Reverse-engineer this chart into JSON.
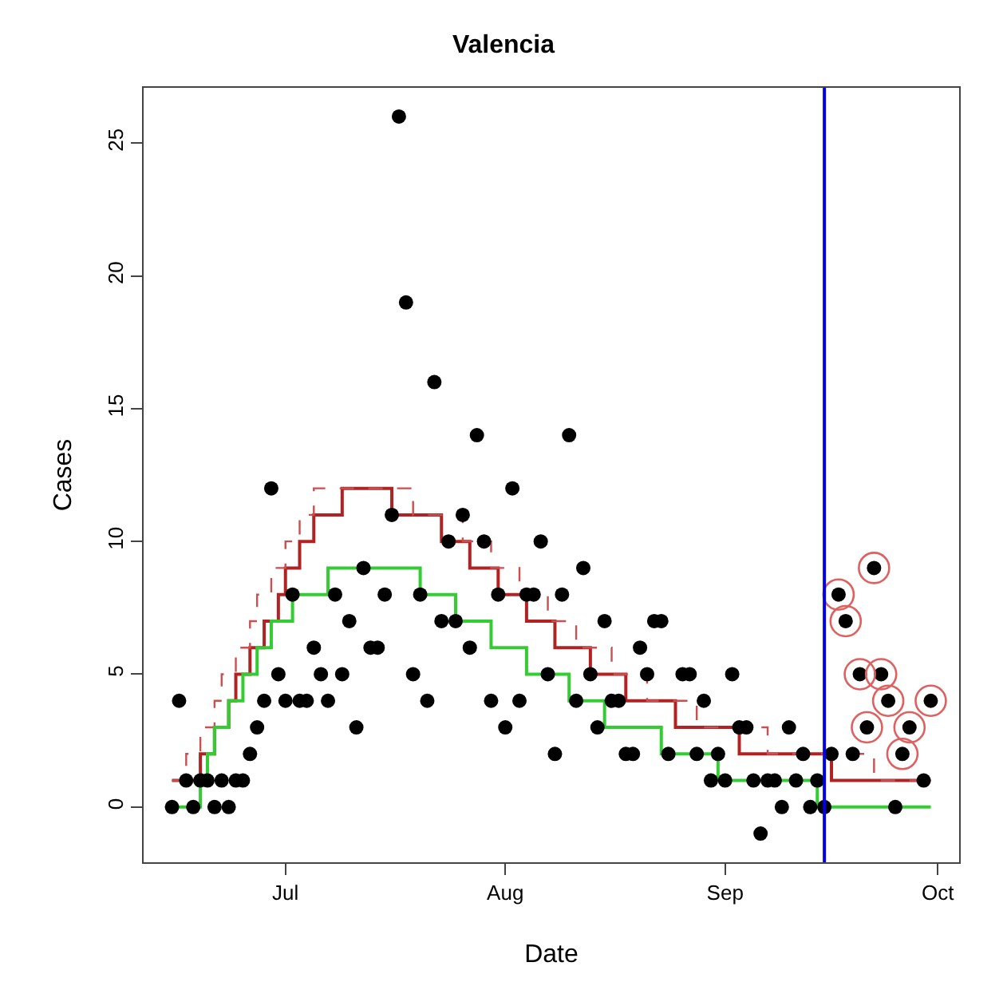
{
  "chart_data": {
    "type": "scatter",
    "title": "Valencia",
    "xlabel": "Date",
    "ylabel": "Cases",
    "xlim": [
      "--06-11",
      "--10-04"
    ],
    "ylim": [
      -2.08,
      27.08
    ],
    "xticks": [
      {
        "value": "--07-01",
        "label": "Jul"
      },
      {
        "value": "--08-01",
        "label": "Aug"
      },
      {
        "value": "--09-01",
        "label": "Sep"
      },
      {
        "value": "--10-01",
        "label": "Oct"
      }
    ],
    "yticks": [
      0,
      5,
      10,
      15,
      20,
      25
    ],
    "ref_lines": [
      {
        "axis": "x",
        "value": "--09-15",
        "color": "#0000ee"
      }
    ],
    "series": [
      {
        "type": "scatter",
        "marker": "circle",
        "color": "#000000",
        "x": [
          "--06-15",
          "--06-16",
          "--06-17",
          "--06-18",
          "--06-19",
          "--06-20",
          "--06-21",
          "--06-22",
          "--06-23",
          "--06-24",
          "--06-25",
          "--06-26",
          "--06-27",
          "--06-28",
          "--06-29",
          "--06-30",
          "--07-01",
          "--07-02",
          "--07-03",
          "--07-04",
          "--07-05",
          "--07-06",
          "--07-07",
          "--07-08",
          "--07-09",
          "--07-10",
          "--07-11",
          "--07-12",
          "--07-13",
          "--07-14",
          "--07-15",
          "--07-16",
          "--07-17",
          "--07-18",
          "--07-19",
          "--07-20",
          "--07-21",
          "--07-22",
          "--07-23",
          "--07-24",
          "--07-25",
          "--07-26",
          "--07-27",
          "--07-28",
          "--07-29",
          "--07-30",
          "--07-31",
          "--08-01",
          "--08-02",
          "--08-03",
          "--08-04",
          "--08-05",
          "--08-06",
          "--08-07",
          "--08-08",
          "--08-09",
          "--08-10",
          "--08-11",
          "--08-12",
          "--08-13",
          "--08-14",
          "--08-15",
          "--08-16",
          "--08-17",
          "--08-18",
          "--08-19",
          "--08-20",
          "--08-21",
          "--08-22",
          "--08-23",
          "--08-24",
          "--08-26",
          "--08-27",
          "--08-28",
          "--08-29",
          "--08-30",
          "--08-31",
          "--09-01",
          "--09-02",
          "--09-03",
          "--09-04",
          "--09-05",
          "--09-06",
          "--09-07",
          "--09-08",
          "--09-09",
          "--09-10",
          "--09-11",
          "--09-12",
          "--09-13",
          "--09-14",
          "--09-15",
          "--09-16",
          "--09-17",
          "--09-18",
          "--09-19",
          "--09-20",
          "--09-21",
          "--09-22",
          "--09-23",
          "--09-24",
          "--09-25",
          "--09-26",
          "--09-27",
          "--09-29",
          "--09-30"
        ],
        "values": [
          0,
          4,
          1,
          0,
          1,
          1,
          0,
          1,
          0,
          1,
          1,
          2,
          3,
          4,
          12,
          5,
          4,
          8,
          4,
          4,
          6,
          5,
          4,
          8,
          5,
          7,
          3,
          9,
          6,
          6,
          8,
          11,
          26,
          19,
          5,
          8,
          4,
          16,
          7,
          10,
          7,
          11,
          6,
          14,
          10,
          4,
          8,
          3,
          12,
          4,
          8,
          8,
          10,
          5,
          2,
          8,
          14,
          4,
          9,
          5,
          3,
          7,
          4,
          4,
          2,
          2,
          6,
          5,
          7,
          7,
          2,
          5,
          5,
          2,
          4,
          1,
          2,
          1,
          5,
          3,
          3,
          1,
          -1,
          1,
          1,
          0,
          3,
          1,
          2,
          0,
          1,
          0,
          2,
          8,
          7,
          2,
          5,
          3,
          9,
          5,
          4,
          0,
          2,
          3,
          1,
          4
        ]
      },
      {
        "type": "scatter",
        "marker": "circle",
        "color": "#e06060",
        "x": [
          "--09-17",
          "--09-18",
          "--09-20",
          "--09-21",
          "--09-22",
          "--09-23",
          "--09-24",
          "--09-26",
          "--09-27",
          "--09-30"
        ],
        "values": [
          8,
          7,
          5,
          3,
          9,
          5,
          4,
          2,
          3,
          4
        ]
      },
      {
        "type": "step",
        "color": "#b22222",
        "line_style": "solid",
        "x": [
          "--06-15",
          "--06-19",
          "--06-21",
          "--06-23",
          "--06-24",
          "--06-26",
          "--06-28",
          "--06-30",
          "--07-01",
          "--07-03",
          "--07-05",
          "--07-09",
          "--07-16",
          "--07-23",
          "--07-27",
          "--07-31",
          "--08-04",
          "--08-08",
          "--08-13",
          "--08-18",
          "--08-25",
          "--09-03",
          "--09-16",
          "--09-30"
        ],
        "values": [
          1,
          2,
          3,
          4,
          5,
          6,
          7,
          8,
          9,
          10,
          11,
          12,
          11,
          10,
          9,
          8,
          7,
          6,
          5,
          4,
          3,
          2,
          1,
          1
        ]
      },
      {
        "type": "step",
        "color": "#c85050",
        "line_style": "dashed",
        "x": [
          "--06-15",
          "--06-17",
          "--06-19",
          "--06-21",
          "--06-22",
          "--06-24",
          "--06-26",
          "--06-27",
          "--06-29",
          "--07-01",
          "--07-03",
          "--07-05",
          "--07-19",
          "--07-26",
          "--07-30",
          "--08-03",
          "--08-07",
          "--08-11",
          "--08-16",
          "--08-21",
          "--08-28",
          "--09-07",
          "--09-22",
          "--09-30"
        ],
        "values": [
          1,
          2,
          3,
          4,
          5,
          6,
          7,
          8,
          9,
          10,
          11,
          12,
          11,
          10,
          9,
          8,
          7,
          6,
          5,
          4,
          3,
          2,
          1,
          1
        ]
      },
      {
        "type": "step",
        "color": "#33cc33",
        "line_style": "solid",
        "x": [
          "--06-15",
          "--06-19",
          "--06-20",
          "--06-21",
          "--06-23",
          "--06-25",
          "--06-27",
          "--06-29",
          "--07-02",
          "--07-07",
          "--07-20",
          "--07-25",
          "--07-30",
          "--08-04",
          "--08-10",
          "--08-15",
          "--08-23",
          "--08-31",
          "--09-14",
          "--09-30"
        ],
        "values": [
          0,
          1,
          2,
          3,
          4,
          5,
          6,
          7,
          8,
          9,
          8,
          7,
          6,
          5,
          4,
          3,
          2,
          1,
          0,
          0
        ]
      }
    ]
  }
}
